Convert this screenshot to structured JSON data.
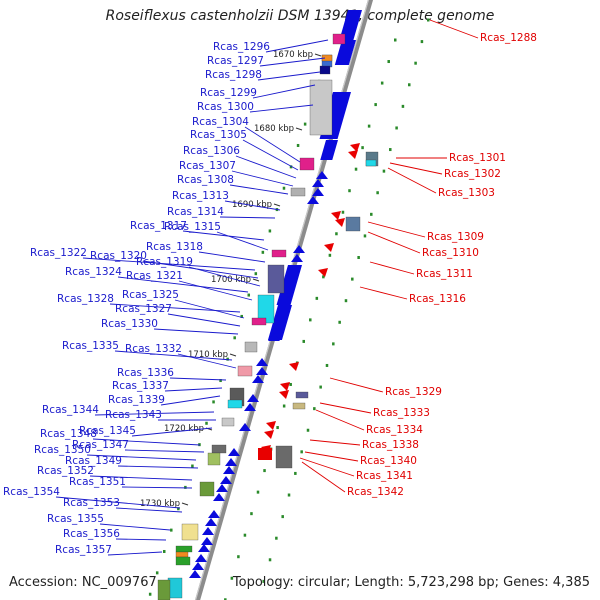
{
  "title": "Roseiflexus castenholzii DSM 13941, complete genome",
  "footer": {
    "accession": "Accession: NC_009767",
    "info": "Topology: circular; Length: 5,723,298 bp; Genes: 4,385"
  },
  "colors": {
    "backbone": "#8c8c8c",
    "forward_gene": "#0a0adc",
    "reverse_gene": "#e80000",
    "forward_label": "#1a1acc",
    "reverse_label": "#e00000",
    "tick_dots": "#2a8a2a"
  },
  "kbp_ticks": [
    "1670 kbp",
    "1680 kbp",
    "1690 kbp",
    "1700 kbp",
    "1710 kbp",
    "1720 kbp",
    "1730 kbp"
  ],
  "forward_labels": [
    "Rcas_1296",
    "Rcas_1297",
    "Rcas_1298",
    "Rcas_1299",
    "Rcas_1300",
    "Rcas_1304",
    "Rcas_1305",
    "Rcas_1306",
    "Rcas_1307",
    "Rcas_1308",
    "Rcas_1313",
    "Rcas_1314",
    "Rcas_1317",
    "Rcas_1315",
    "Rcas_1318",
    "Rcas_1322",
    "Rcas_1320",
    "Rcas_1319",
    "Rcas_1324",
    "Rcas_1321",
    "Rcas_1328",
    "Rcas_1325",
    "Rcas_1327",
    "Rcas_1330",
    "Rcas_1335",
    "Rcas_1332",
    "Rcas_1336",
    "Rcas_1337",
    "Rcas_1339",
    "Rcas_1344",
    "Rcas_1343",
    "Rcas_1345",
    "Rcas_1348",
    "Rcas_1347",
    "Rcas_1350",
    "Rcas_1349",
    "Rcas_1352",
    "Rcas_1351",
    "Rcas_1354",
    "Rcas_1353",
    "Rcas_1355",
    "Rcas_1356",
    "Rcas_1357"
  ],
  "reverse_labels": [
    "Rcas_1288",
    "Rcas_1301",
    "Rcas_1302",
    "Rcas_1303",
    "Rcas_1309",
    "Rcas_1310",
    "Rcas_1311",
    "Rcas_1316",
    "Rcas_1329",
    "Rcas_1333",
    "Rcas_1334",
    "Rcas_1338",
    "Rcas_1340",
    "Rcas_1341",
    "Rcas_1342"
  ]
}
